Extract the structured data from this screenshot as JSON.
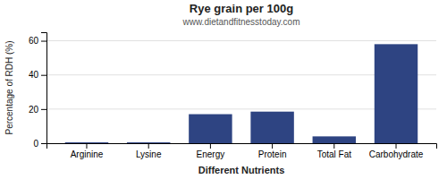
{
  "chart_data": {
    "type": "bar",
    "title": "Rye grain per 100g",
    "subtitle": "www.dietandfitnesstoday.com",
    "xlabel": "Different Nutrients",
    "ylabel": "Percentage of RDH (%)",
    "categories": [
      "Arginine",
      "Lysine",
      "Energy",
      "Protein",
      "Total Fat",
      "Carbohydrate"
    ],
    "values": [
      0.5,
      0.5,
      17,
      18.5,
      4,
      58
    ],
    "color": "#2e4482",
    "ylim": [
      0,
      65
    ],
    "yticks": [
      0,
      20,
      40,
      60
    ],
    "grid": true
  }
}
